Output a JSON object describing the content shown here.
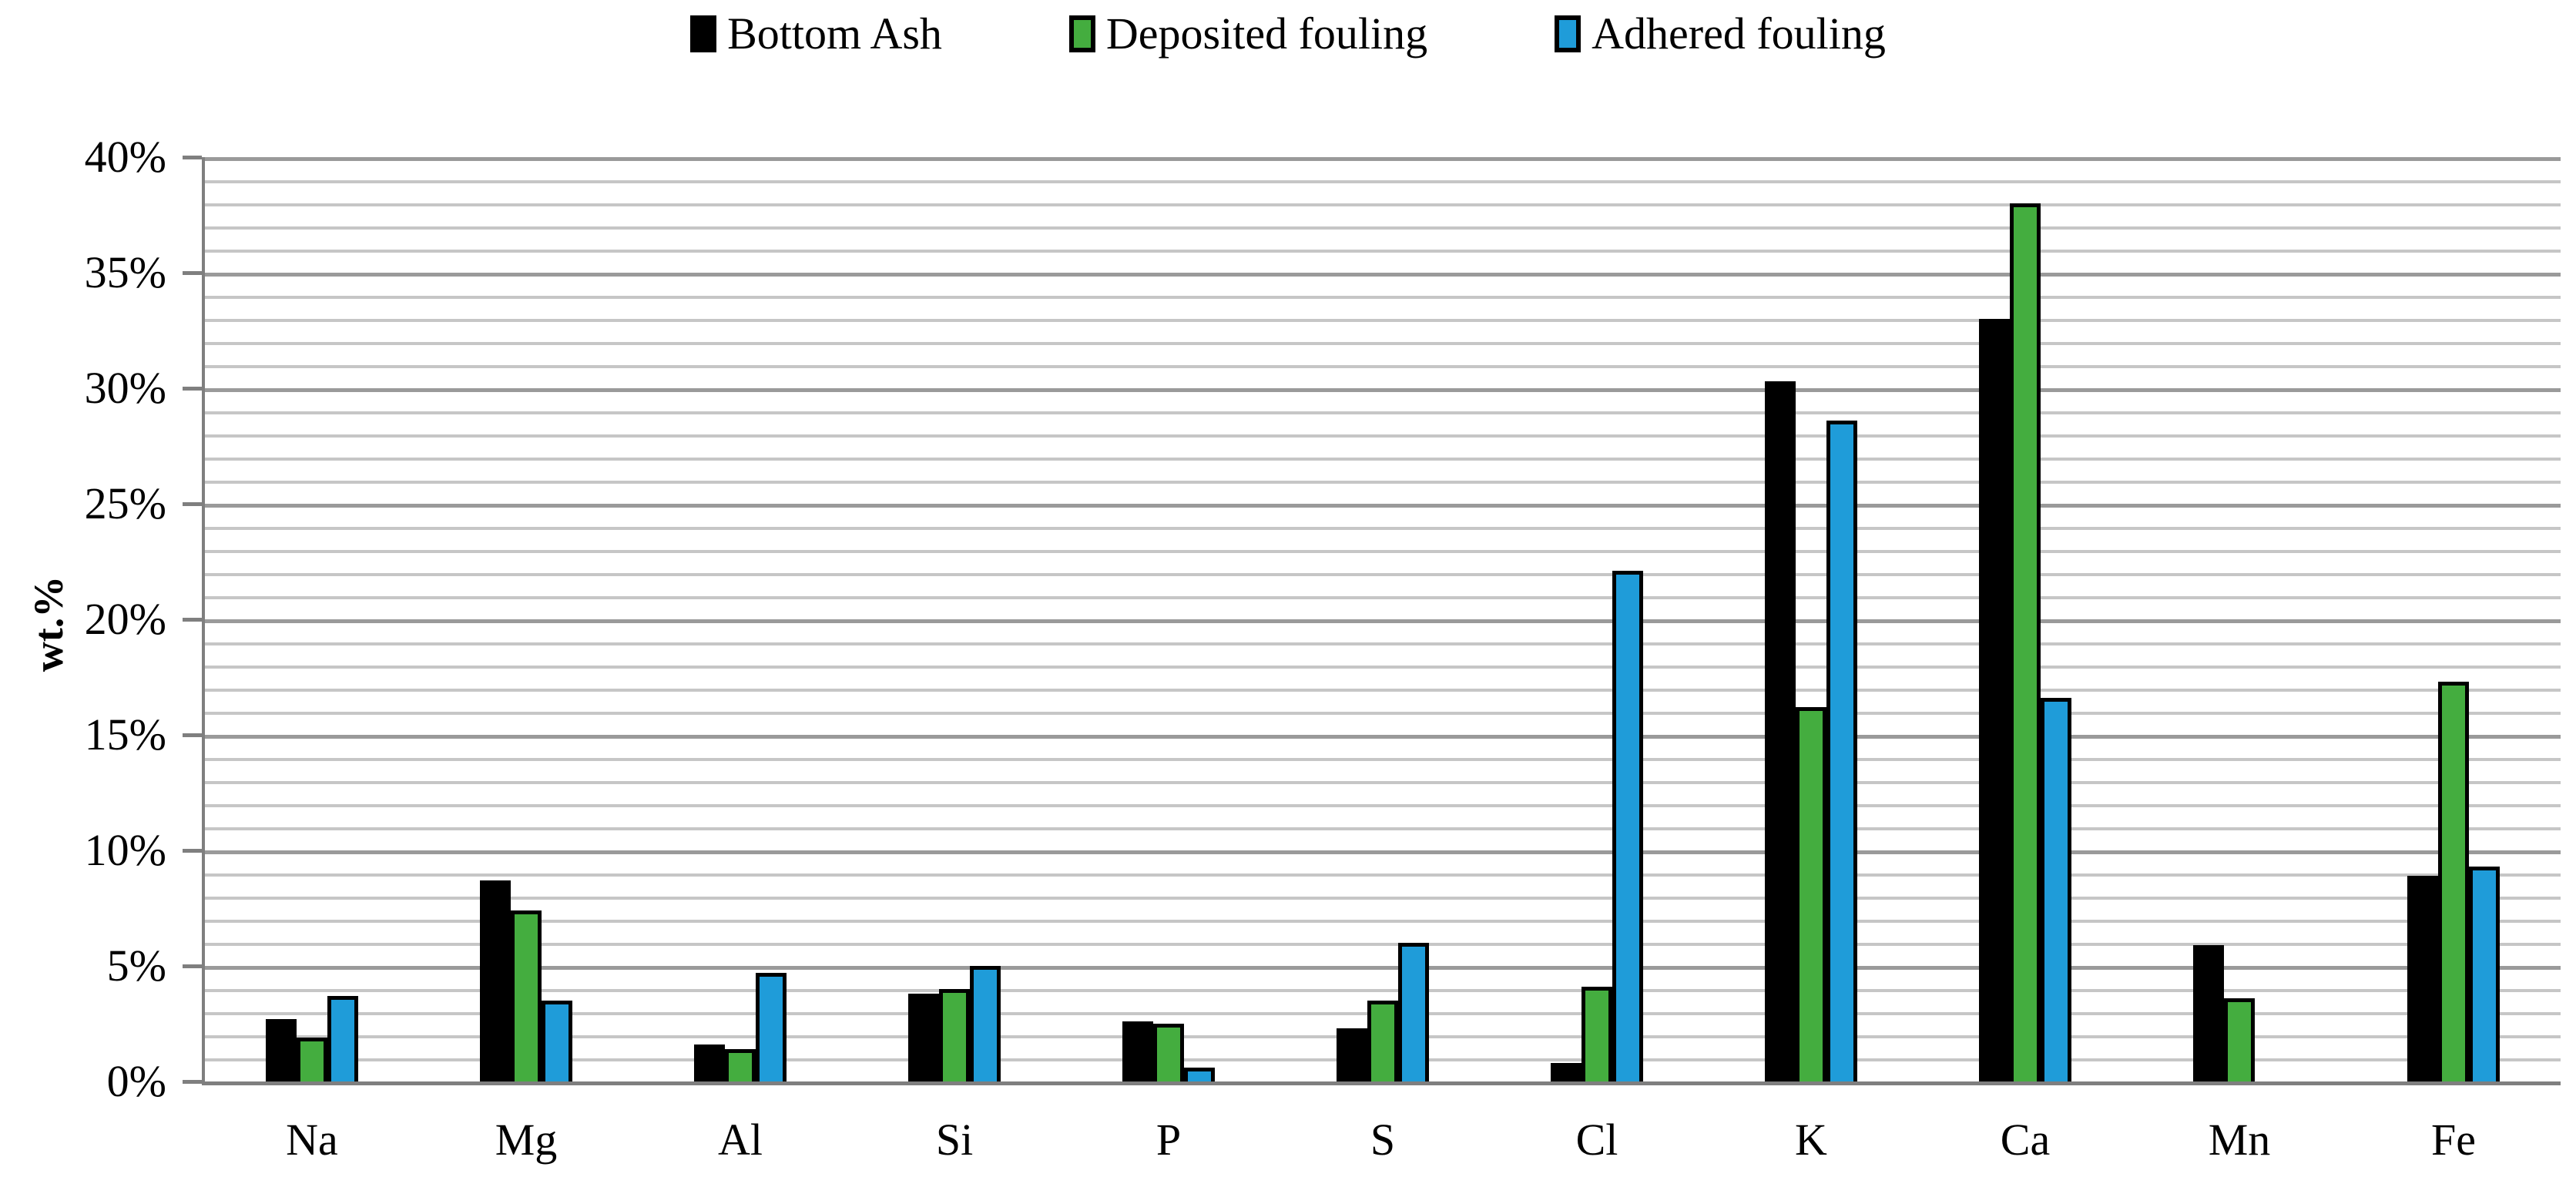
{
  "chart_data": {
    "type": "bar",
    "title": "",
    "ylabel": "wt.%",
    "ylim": [
      0,
      40
    ],
    "y_major_step": 5,
    "y_minor_step": 1,
    "ytick_labels": [
      "0%",
      "5%",
      "10%",
      "15%",
      "20%",
      "25%",
      "30%",
      "35%",
      "40%"
    ],
    "categories": [
      "Na",
      "Mg",
      "Al",
      "Si",
      "P",
      "S",
      "Cl",
      "K",
      "Ca",
      "Mn",
      "Fe"
    ],
    "series": [
      {
        "name": "Bottom Ash",
        "color": "#000000",
        "values": [
          2.7,
          8.7,
          1.6,
          3.8,
          2.6,
          2.3,
          0.8,
          30.3,
          33.0,
          5.9,
          8.9
        ]
      },
      {
        "name": "Deposited fouling",
        "color": "#44ad3f",
        "values": [
          1.9,
          7.4,
          1.4,
          4.0,
          2.5,
          3.5,
          4.1,
          16.2,
          38.0,
          3.6,
          17.3
        ]
      },
      {
        "name": "Adhered fouling",
        "color": "#1f9cd9",
        "values": [
          3.7,
          3.5,
          4.7,
          5.0,
          0.6,
          6.0,
          22.1,
          28.6,
          16.6,
          0.0,
          9.3
        ]
      }
    ],
    "legend_position": "top",
    "grid": "horizontal; minor line every 1%, major line every 5%"
  }
}
